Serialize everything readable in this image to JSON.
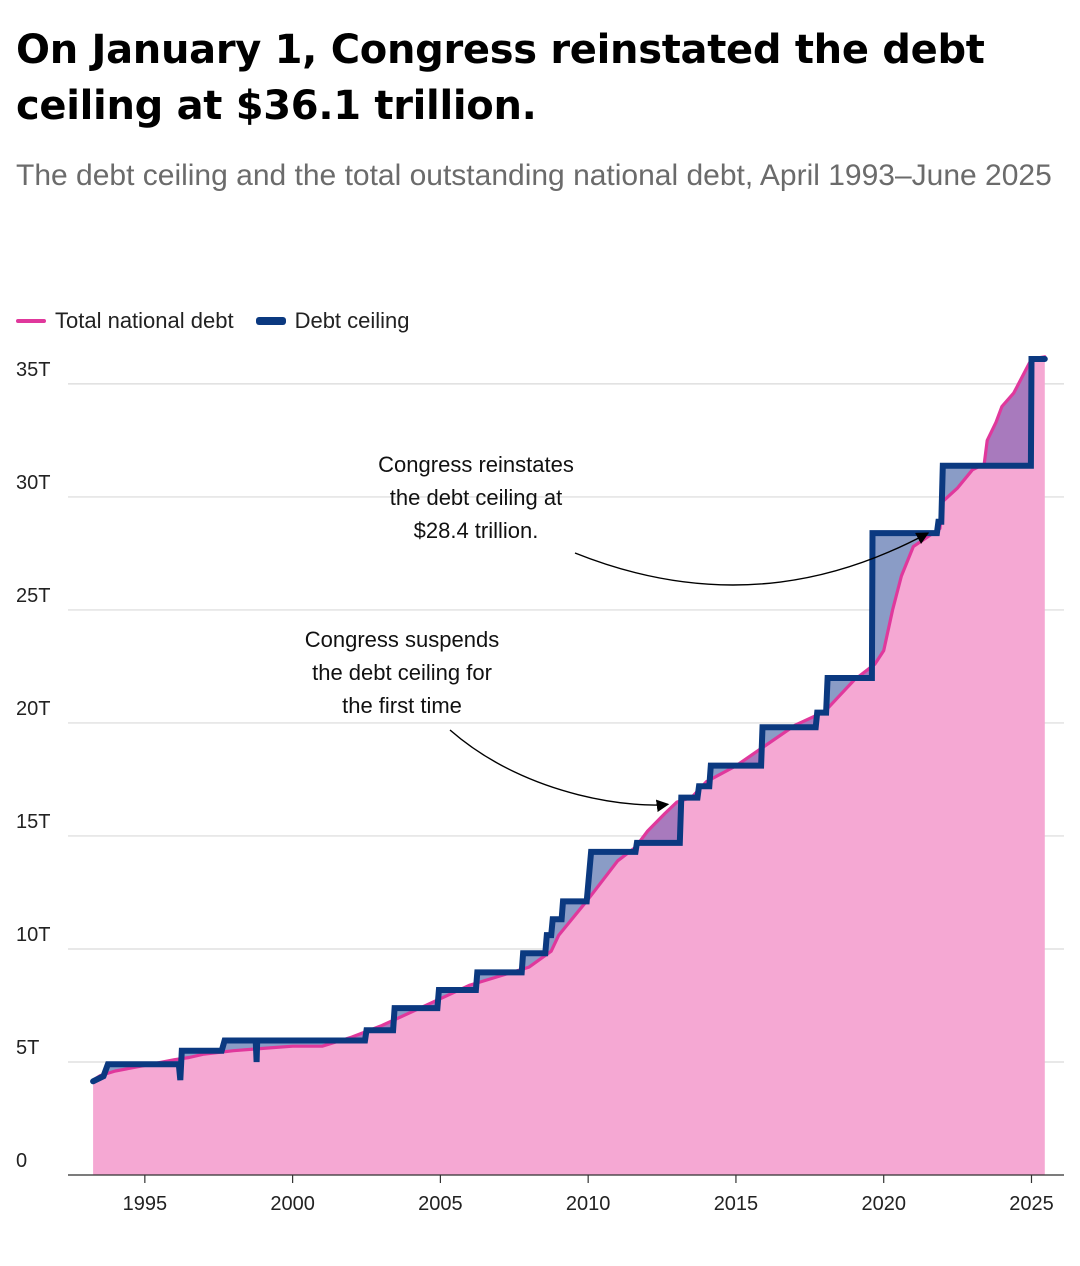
{
  "title": "On January 1, Congress reinstated the debt ceiling at $36.1 trillion.",
  "subtitle": "The debt ceiling and the total outstanding national debt, April 1993–June 2025",
  "colors": {
    "debt_line": "#e0389c",
    "debt_fill": "#f5a8d3",
    "ceiling_line": "#0b3980",
    "gap_fill": "#8a9cc6",
    "grid": "#d9d9d9"
  },
  "chart_data": {
    "type": "line",
    "x_unit": "year",
    "x_ticks": [
      1995,
      2000,
      2005,
      2010,
      2015,
      2020,
      2025
    ],
    "x_tick_labels": [
      "1995",
      "2000",
      "2005",
      "2010",
      "2015",
      "2020",
      "2025"
    ],
    "xlim": [
      1992.4,
      2026.1
    ],
    "ylim": [
      0,
      36.5
    ],
    "y_ticks": [
      0,
      5,
      10,
      15,
      20,
      25,
      30,
      35
    ],
    "y_tick_labels": [
      "0",
      "5T",
      "10T",
      "15T",
      "20T",
      "25T",
      "30T",
      "35T"
    ],
    "grid": true,
    "legend_position": "top-left",
    "series": [
      {
        "name": "Total national debt",
        "kind": "area-line",
        "color": "#e0389c",
        "points": [
          [
            1993.25,
            4.2
          ],
          [
            1993.5,
            4.4
          ],
          [
            1994.0,
            4.6
          ],
          [
            1995.0,
            4.85
          ],
          [
            1996.0,
            5.1
          ],
          [
            1996.5,
            5.2
          ],
          [
            1997.0,
            5.35
          ],
          [
            1998.0,
            5.5
          ],
          [
            1999.0,
            5.6
          ],
          [
            2000.0,
            5.7
          ],
          [
            2001.0,
            5.7
          ],
          [
            2002.0,
            6.1
          ],
          [
            2003.0,
            6.6
          ],
          [
            2004.0,
            7.2
          ],
          [
            2005.0,
            7.8
          ],
          [
            2006.0,
            8.4
          ],
          [
            2007.0,
            8.8
          ],
          [
            2008.0,
            9.2
          ],
          [
            2008.75,
            9.9
          ],
          [
            2009.0,
            10.6
          ],
          [
            2010.0,
            12.2
          ],
          [
            2011.0,
            13.9
          ],
          [
            2011.6,
            14.5
          ],
          [
            2012.0,
            15.2
          ],
          [
            2012.6,
            16.0
          ],
          [
            2013.0,
            16.5
          ],
          [
            2013.5,
            16.7
          ],
          [
            2014.0,
            17.4
          ],
          [
            2015.0,
            18.1
          ],
          [
            2016.0,
            19.0
          ],
          [
            2017.0,
            19.9
          ],
          [
            2018.0,
            20.5
          ],
          [
            2018.5,
            21.2
          ],
          [
            2019.0,
            21.9
          ],
          [
            2019.7,
            22.6
          ],
          [
            2020.0,
            23.2
          ],
          [
            2020.3,
            25.0
          ],
          [
            2020.6,
            26.5
          ],
          [
            2021.0,
            27.8
          ],
          [
            2021.9,
            28.6
          ],
          [
            2022.0,
            29.8
          ],
          [
            2022.5,
            30.4
          ],
          [
            2023.0,
            31.2
          ],
          [
            2023.4,
            31.45
          ],
          [
            2023.5,
            32.5
          ],
          [
            2023.8,
            33.3
          ],
          [
            2024.0,
            34.0
          ],
          [
            2024.4,
            34.6
          ],
          [
            2024.8,
            35.6
          ],
          [
            2025.0,
            36.1
          ],
          [
            2025.45,
            36.2
          ]
        ]
      },
      {
        "name": "Debt ceiling",
        "kind": "step",
        "color": "#0b3980",
        "points": [
          [
            1993.25,
            4.145
          ],
          [
            1993.6,
            4.37
          ],
          [
            1993.75,
            4.9
          ],
          [
            1996.15,
            4.9
          ],
          [
            1996.2,
            4.2
          ],
          [
            1996.25,
            5.5
          ],
          [
            1997.6,
            5.5
          ],
          [
            1997.7,
            5.95
          ],
          [
            1998.75,
            5.95
          ],
          [
            1998.78,
            5.0
          ],
          [
            1998.8,
            5.95
          ],
          [
            2002.45,
            5.95
          ],
          [
            2002.5,
            6.4
          ],
          [
            2003.4,
            6.4
          ],
          [
            2003.45,
            7.384
          ],
          [
            2004.9,
            7.384
          ],
          [
            2004.95,
            8.184
          ],
          [
            2006.2,
            8.184
          ],
          [
            2006.25,
            8.965
          ],
          [
            2007.75,
            8.965
          ],
          [
            2007.8,
            9.815
          ],
          [
            2008.55,
            9.815
          ],
          [
            2008.6,
            10.615
          ],
          [
            2008.75,
            10.615
          ],
          [
            2008.8,
            11.315
          ],
          [
            2009.1,
            11.315
          ],
          [
            2009.15,
            12.104
          ],
          [
            2009.95,
            12.104
          ],
          [
            2010.1,
            14.294
          ],
          [
            2011.6,
            14.294
          ],
          [
            2011.65,
            14.694
          ],
          [
            2013.1,
            14.694
          ],
          [
            2013.15,
            16.699
          ],
          [
            2013.7,
            16.699
          ],
          [
            2013.75,
            17.2
          ],
          [
            2014.1,
            17.2
          ],
          [
            2014.15,
            18.113
          ],
          [
            2015.85,
            18.113
          ],
          [
            2015.9,
            19.809
          ],
          [
            2017.7,
            19.809
          ],
          [
            2017.75,
            20.456
          ],
          [
            2018.05,
            20.456
          ],
          [
            2018.1,
            21.987
          ],
          [
            2019.6,
            21.987
          ],
          [
            2019.62,
            28.4
          ],
          [
            2021.8,
            28.4
          ],
          [
            2021.85,
            28.9
          ],
          [
            2021.95,
            28.9
          ],
          [
            2022.0,
            31.381
          ],
          [
            2024.98,
            31.381
          ],
          [
            2025.0,
            36.1
          ],
          [
            2025.45,
            36.1
          ]
        ]
      }
    ],
    "annotations": [
      {
        "lines": [
          "Congress reinstates",
          "the debt ceiling at",
          "$28.4 trillion."
        ],
        "target": [
          2021.5,
          28.4
        ]
      },
      {
        "lines": [
          "Congress suspends",
          "the debt ceiling for",
          "the first time"
        ],
        "target": [
          2012.7,
          16.4
        ]
      }
    ]
  }
}
